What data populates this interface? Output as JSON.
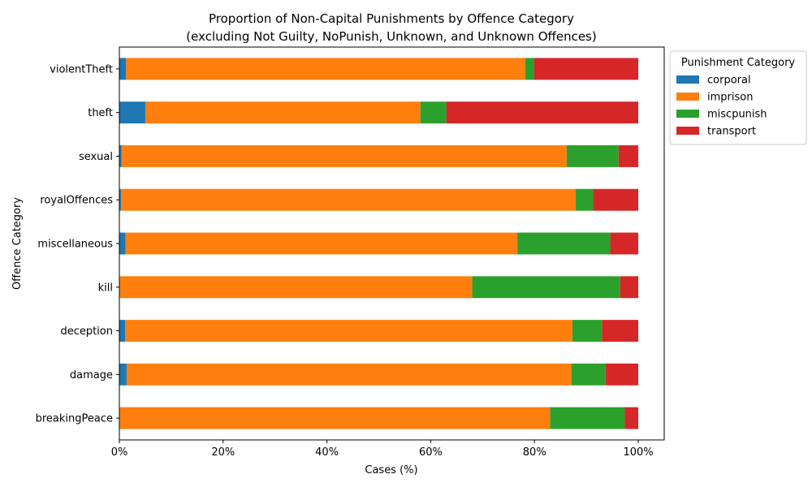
{
  "chart_data": {
    "type": "bar",
    "orientation": "horizontal",
    "stacked": true,
    "title": "Proportion of Non-Capital Punishments by Offence Category",
    "subtitle": "(excluding Not Guilty, NoPunish, Unknown, and Unknown Offences)",
    "xlabel": "Cases (%)",
    "ylabel": "Offence Category",
    "xlim": [
      0,
      105
    ],
    "xticks": [
      "0%",
      "20%",
      "40%",
      "60%",
      "80%",
      "100%"
    ],
    "grid": false,
    "legend": {
      "title": "Punishment Category",
      "placement": "outside-right-top"
    },
    "categories": [
      "breakingPeace",
      "damage",
      "deception",
      "kill",
      "miscellaneous",
      "royalOffences",
      "sexual",
      "theft",
      "violentTheft"
    ],
    "series": [
      {
        "name": "corporal",
        "color": "#1f77b4",
        "values": [
          0.1,
          1.4,
          1.1,
          0.1,
          1.2,
          0.3,
          0.4,
          5.0,
          1.3
        ]
      },
      {
        "name": "imprison",
        "color": "#ff7f0e",
        "values": [
          82.9,
          85.7,
          86.2,
          67.9,
          75.5,
          87.6,
          85.8,
          53.0,
          76.9
        ]
      },
      {
        "name": "miscpunish",
        "color": "#2ca02c",
        "values": [
          14.4,
          6.6,
          5.7,
          28.5,
          17.9,
          3.4,
          10.0,
          5.0,
          1.7
        ]
      },
      {
        "name": "transport",
        "color": "#d62728",
        "values": [
          2.6,
          6.3,
          7.0,
          3.5,
          5.4,
          8.7,
          3.8,
          37.0,
          20.1
        ]
      }
    ]
  }
}
